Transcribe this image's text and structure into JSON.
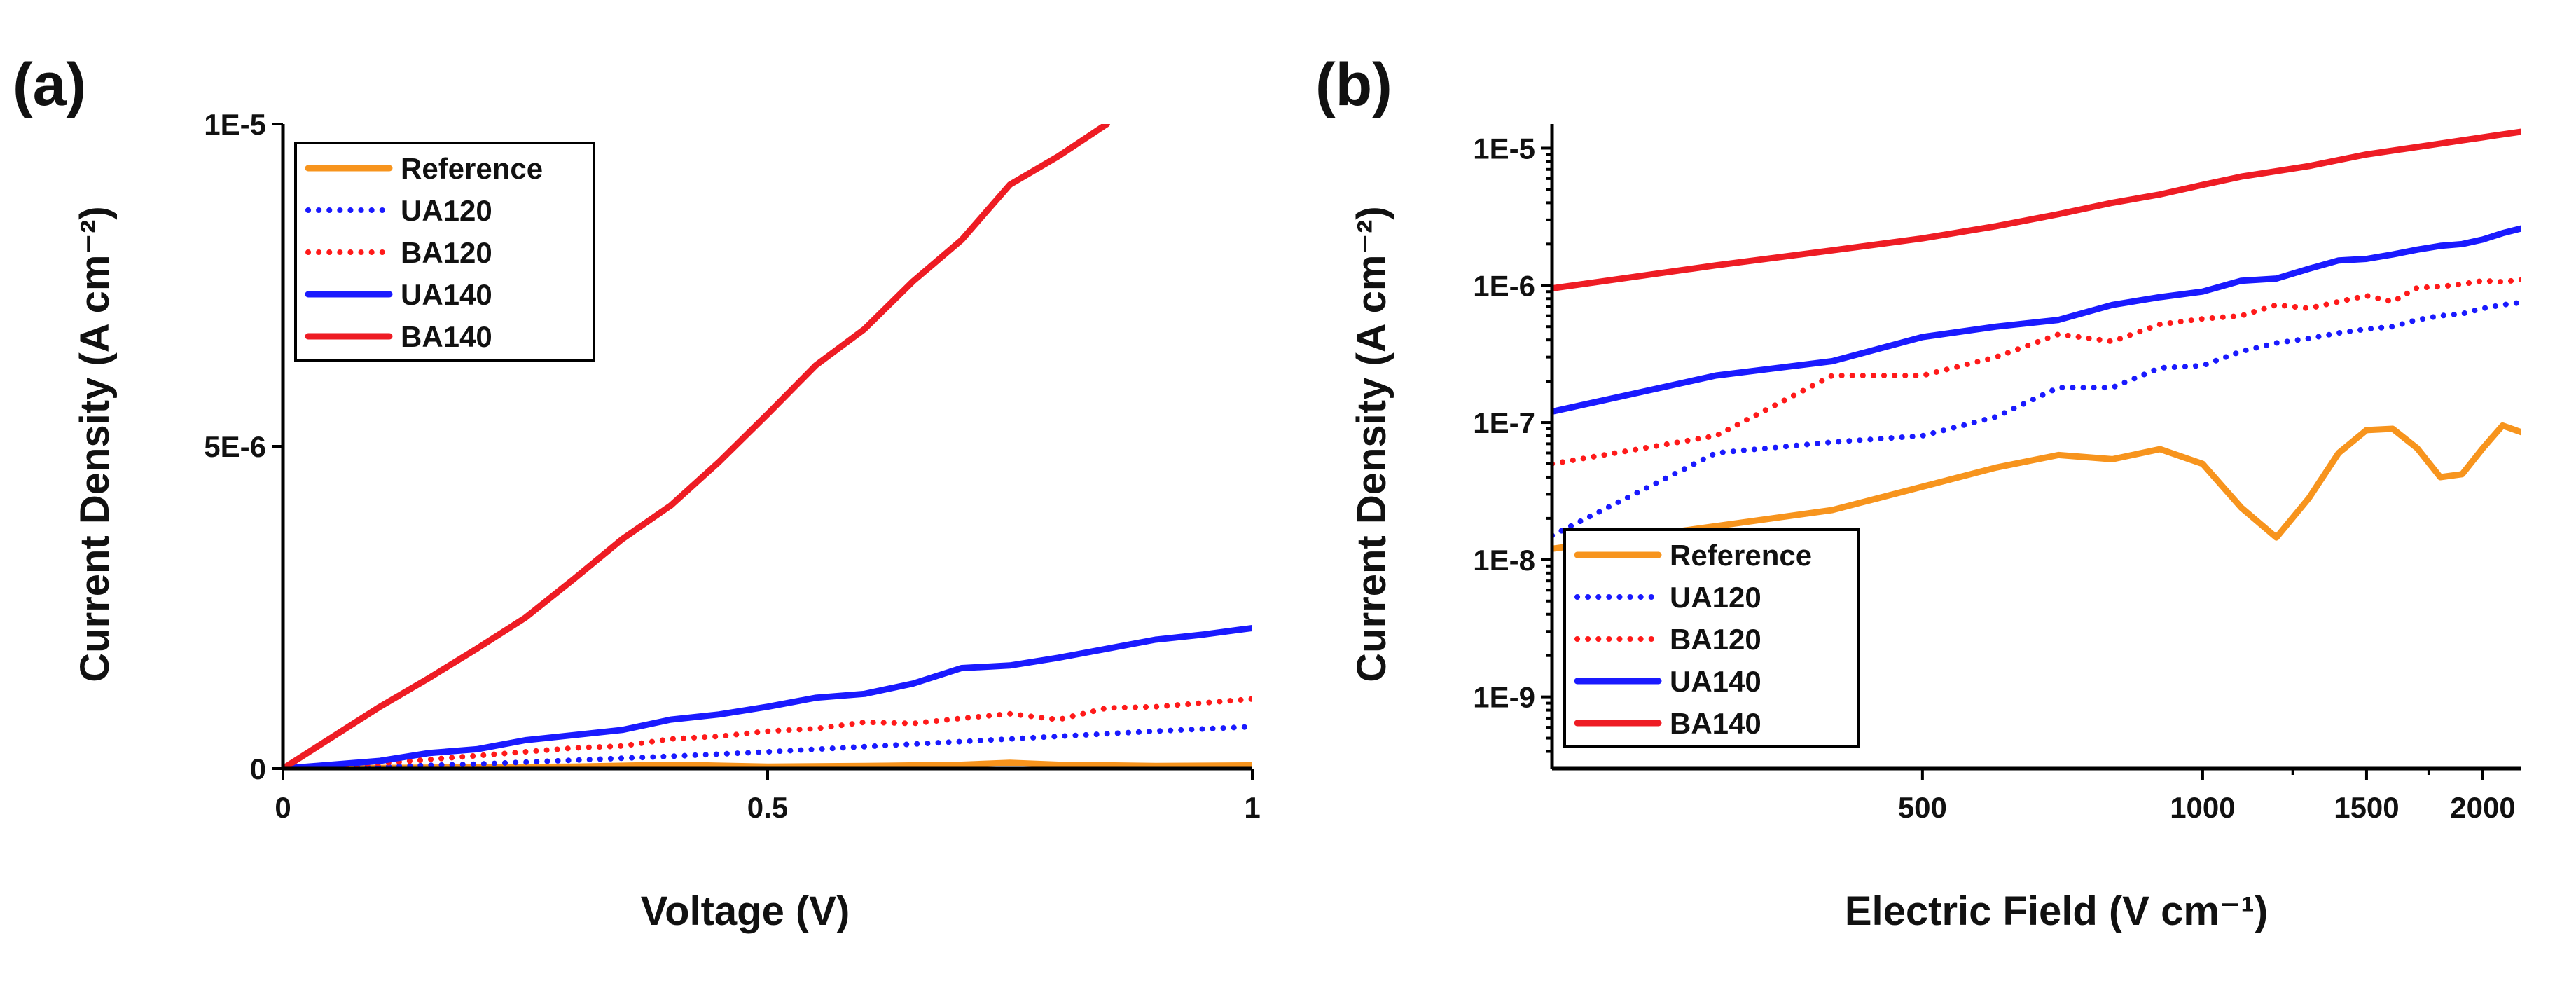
{
  "colors": {
    "Reference": "#f7941d",
    "UA120": "#1a1aff",
    "BA120": "#ff1a1a",
    "UA140": "#1a1aff",
    "BA140": "#ee1c24"
  },
  "chart_data": [
    {
      "panel": "(a)",
      "type": "line",
      "title": "",
      "xlabel": "Voltage (V)",
      "ylabel": "Current Density (A cm⁻²)",
      "xlim": [
        0,
        1
      ],
      "ylim": [
        0,
        1e-05
      ],
      "x_ticks": [
        {
          "v": 0,
          "label": "0"
        },
        {
          "v": 0.5,
          "label": "0.5"
        },
        {
          "v": 1,
          "label": "1"
        }
      ],
      "y_ticks": [
        {
          "v": 0,
          "label": "0"
        },
        {
          "v": 5e-06,
          "label": "5E-6"
        },
        {
          "v": 1e-05,
          "label": "1E-5"
        }
      ],
      "legend_position": "top-left",
      "series": [
        {
          "name": "Reference",
          "style": "solid",
          "x": [
            0,
            0.1,
            0.2,
            0.3,
            0.4,
            0.5,
            0.6,
            0.7,
            0.75,
            0.8,
            0.9,
            1.0
          ],
          "y": [
            0,
            1e-08,
            2e-08,
            3e-08,
            6e-08,
            3e-08,
            4e-08,
            6e-08,
            9e-08,
            6e-08,
            4e-08,
            5e-08
          ]
        },
        {
          "name": "UA120",
          "style": "dotted",
          "x": [
            0,
            0.1,
            0.2,
            0.3,
            0.4,
            0.5,
            0.6,
            0.7,
            0.8,
            0.9,
            1.0
          ],
          "y": [
            0,
            3e-08,
            7e-08,
            1.3e-07,
            1.9e-07,
            2.6e-07,
            3.4e-07,
            4.2e-07,
            5e-07,
            5.8e-07,
            6.5e-07
          ]
        },
        {
          "name": "BA120",
          "style": "dotted",
          "x": [
            0,
            0.1,
            0.2,
            0.3,
            0.35,
            0.4,
            0.45,
            0.5,
            0.55,
            0.6,
            0.65,
            0.7,
            0.75,
            0.8,
            0.85,
            0.9,
            0.95,
            1.0
          ],
          "y": [
            0,
            8e-08,
            2e-07,
            3.2e-07,
            3.5e-07,
            4.6e-07,
            5e-07,
            5.8e-07,
            6.2e-07,
            7.2e-07,
            7e-07,
            7.8e-07,
            8.5e-07,
            7.6e-07,
            9.4e-07,
            9.6e-07,
            1.02e-06,
            1.08e-06
          ]
        },
        {
          "name": "UA140",
          "style": "solid",
          "x": [
            0,
            0.1,
            0.15,
            0.2,
            0.25,
            0.3,
            0.35,
            0.4,
            0.45,
            0.5,
            0.55,
            0.6,
            0.65,
            0.7,
            0.75,
            0.8,
            0.85,
            0.9,
            0.95,
            1.0
          ],
          "y": [
            0,
            1.2e-07,
            2.4e-07,
            3e-07,
            4.4e-07,
            5.2e-07,
            6e-07,
            7.6e-07,
            8.4e-07,
            9.6e-07,
            1.1e-06,
            1.16e-06,
            1.32e-06,
            1.56e-06,
            1.6e-06,
            1.72e-06,
            1.86e-06,
            2e-06,
            2.08e-06,
            2.18e-06
          ]
        },
        {
          "name": "BA140",
          "style": "solid",
          "x": [
            0,
            0.05,
            0.1,
            0.15,
            0.2,
            0.25,
            0.3,
            0.35,
            0.4,
            0.45,
            0.5,
            0.55,
            0.6,
            0.65,
            0.7,
            0.75,
            0.8,
            0.85
          ],
          "y": [
            0,
            4.8e-07,
            9.6e-07,
            1.4e-06,
            1.86e-06,
            2.34e-06,
            2.94e-06,
            3.56e-06,
            4.08e-06,
            4.76e-06,
            5.5e-06,
            6.26e-06,
            6.82e-06,
            7.56e-06,
            8.2e-06,
            9.06e-06,
            9.5e-06,
            1e-05
          ]
        }
      ]
    },
    {
      "panel": "(b)",
      "type": "line",
      "title": "",
      "xlabel": "Electric Field (V cm⁻¹)",
      "ylabel": "Current Density (A cm⁻²)",
      "xscale": "log",
      "yscale": "log",
      "xlim": [
        200,
        2200
      ],
      "ylim": [
        3e-10,
        1.5e-05
      ],
      "x_ticks": [
        {
          "v": 500,
          "label": "500"
        },
        {
          "v": 1000,
          "label": "1000"
        },
        {
          "v": 1500,
          "label": "1500"
        },
        {
          "v": 2000,
          "label": "2000"
        }
      ],
      "x_minor_ticks": [
        1250,
        1750
      ],
      "y_ticks": [
        {
          "v": 1e-09,
          "label": "1E-9"
        },
        {
          "v": 1e-08,
          "label": "1E-8"
        },
        {
          "v": 1e-07,
          "label": "1E-7"
        },
        {
          "v": 1e-06,
          "label": "1E-6"
        },
        {
          "v": 1e-05,
          "label": "1E-5"
        }
      ],
      "legend_position": "bottom-left",
      "series": [
        {
          "name": "Reference",
          "style": "solid",
          "x": [
            200,
            400,
            600,
            700,
            800,
            900,
            1000,
            1100,
            1200,
            1300,
            1400,
            1500,
            1600,
            1700,
            1800,
            1900,
            2000,
            2100,
            2200
          ],
          "y": [
            1.2e-08,
            2.3e-08,
            4.7e-08,
            5.8e-08,
            5.4e-08,
            6.4e-08,
            5e-08,
            2.4e-08,
            1.45e-08,
            2.8e-08,
            6e-08,
            8.8e-08,
            9e-08,
            6.5e-08,
            4e-08,
            4.2e-08,
            6.5e-08,
            9.5e-08,
            8.5e-08
          ]
        },
        {
          "name": "UA120",
          "style": "dotted",
          "x": [
            200,
            300,
            400,
            500,
            600,
            700,
            800,
            900,
            1000,
            1100,
            1200,
            1300,
            1400,
            1500,
            1600,
            1700,
            1800,
            1900,
            2000,
            2100,
            2200
          ],
          "y": [
            1.5e-08,
            6e-08,
            7.2e-08,
            8e-08,
            1.1e-07,
            1.8e-07,
            1.8e-07,
            2.5e-07,
            2.6e-07,
            3.3e-07,
            3.8e-07,
            4.1e-07,
            4.5e-07,
            4.8e-07,
            5e-07,
            5.6e-07,
            6e-07,
            6.2e-07,
            6.8e-07,
            7.2e-07,
            7.5e-07
          ]
        },
        {
          "name": "BA120",
          "style": "dotted",
          "x": [
            200,
            300,
            400,
            500,
            600,
            700,
            800,
            900,
            1000,
            1100,
            1200,
            1300,
            1400,
            1500,
            1600,
            1700,
            1800,
            1900,
            2000,
            2100,
            2200
          ],
          "y": [
            5e-08,
            8e-08,
            2.2e-07,
            2.2e-07,
            3e-07,
            4.4e-07,
            3.9e-07,
            5.2e-07,
            5.7e-07,
            6e-07,
            7.2e-07,
            6.8e-07,
            7.6e-07,
            8.4e-07,
            7.6e-07,
            9.6e-07,
            9.8e-07,
            1.02e-06,
            1.08e-06,
            1.06e-06,
            1.1e-06
          ]
        },
        {
          "name": "UA140",
          "style": "solid",
          "x": [
            200,
            300,
            400,
            500,
            600,
            700,
            800,
            900,
            1000,
            1100,
            1200,
            1300,
            1400,
            1500,
            1600,
            1700,
            1800,
            1900,
            2000,
            2100,
            2200
          ],
          "y": [
            1.2e-07,
            2.2e-07,
            2.8e-07,
            4.2e-07,
            5e-07,
            5.6e-07,
            7.2e-07,
            8.2e-07,
            9e-07,
            1.08e-06,
            1.12e-06,
            1.32e-06,
            1.52e-06,
            1.56e-06,
            1.68e-06,
            1.82e-06,
            1.94e-06,
            2e-06,
            2.16e-06,
            2.4e-06,
            2.6e-06
          ]
        },
        {
          "name": "BA140",
          "style": "solid",
          "x": [
            200,
            300,
            400,
            500,
            600,
            700,
            800,
            900,
            1000,
            1100,
            1200,
            1300,
            1400,
            1500,
            1600,
            1700,
            1800,
            1900,
            2000,
            2100,
            2200
          ],
          "y": [
            9.5e-07,
            1.4e-06,
            1.8e-06,
            2.2e-06,
            2.7e-06,
            3.3e-06,
            4e-06,
            4.6e-06,
            5.4e-06,
            6.2e-06,
            6.8e-06,
            7.4e-06,
            8.2e-06,
            9e-06,
            9.6e-06,
            1.02e-05,
            1.08e-05,
            1.14e-05,
            1.2e-05,
            1.26e-05,
            1.32e-05
          ]
        }
      ]
    }
  ]
}
